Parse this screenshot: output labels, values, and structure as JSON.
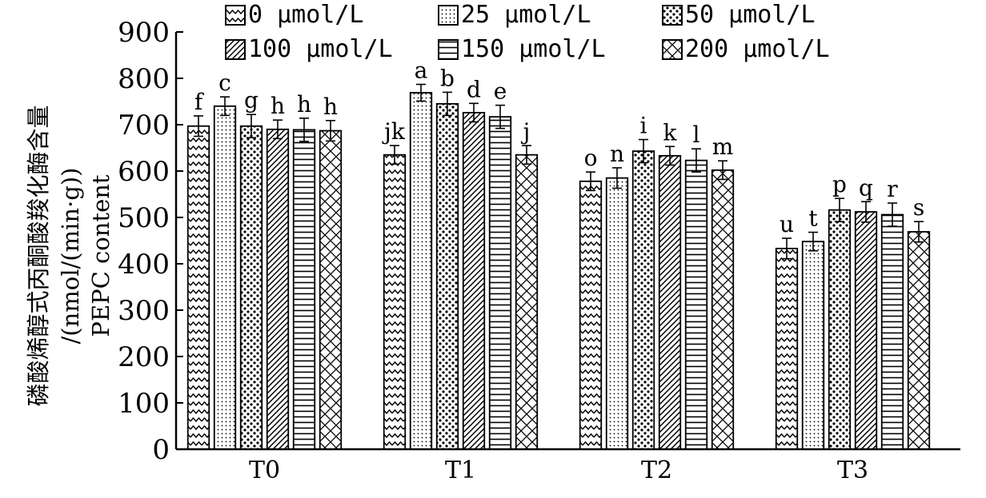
{
  "chart_data": {
    "type": "bar",
    "title": "",
    "xlabel": "",
    "ylabel_lines": [
      "磷酸烯醇式丙酮酸羧化酶含量",
      "/(nmol/(min·g))",
      "PEPC content"
    ],
    "ylim": [
      0,
      900
    ],
    "yticks": [
      0,
      100,
      200,
      300,
      400,
      500,
      600,
      700,
      800,
      900
    ],
    "grid": false,
    "legend_position": "top",
    "categories": [
      "T0",
      "T1",
      "T2",
      "T3"
    ],
    "series": [
      {
        "name": "0 μmol/L",
        "pattern": "zigzag",
        "values": [
          697,
          635,
          578,
          433
        ],
        "errors": [
          22,
          20,
          20,
          22
        ],
        "labels": [
          "f",
          "jk",
          "o",
          "u"
        ]
      },
      {
        "name": "25 μmol/L",
        "pattern": "dots",
        "values": [
          740,
          769,
          585,
          448
        ],
        "errors": [
          20,
          18,
          22,
          20
        ],
        "labels": [
          "c",
          "a",
          "n",
          "t"
        ]
      },
      {
        "name": "50 μmol/L",
        "pattern": "bigdots",
        "values": [
          697,
          745,
          643,
          516
        ],
        "errors": [
          25,
          25,
          25,
          25
        ],
        "labels": [
          "g",
          "b",
          "i",
          "p"
        ]
      },
      {
        "name": "100 μmol/L",
        "pattern": "diagonal",
        "values": [
          690,
          726,
          633,
          512
        ],
        "errors": [
          20,
          20,
          20,
          22
        ],
        "labels": [
          "h",
          "d",
          "k",
          "q"
        ]
      },
      {
        "name": "150 μmol/L",
        "pattern": "horizontal",
        "values": [
          689,
          717,
          623,
          506
        ],
        "errors": [
          25,
          25,
          25,
          25
        ],
        "labels": [
          "h",
          "e",
          "l",
          "r"
        ]
      },
      {
        "name": "200 μmol/L",
        "pattern": "crosshatch",
        "values": [
          687,
          635,
          602,
          469
        ],
        "errors": [
          22,
          20,
          20,
          22
        ],
        "labels": [
          "h",
          "j",
          "m",
          "s"
        ]
      }
    ]
  }
}
